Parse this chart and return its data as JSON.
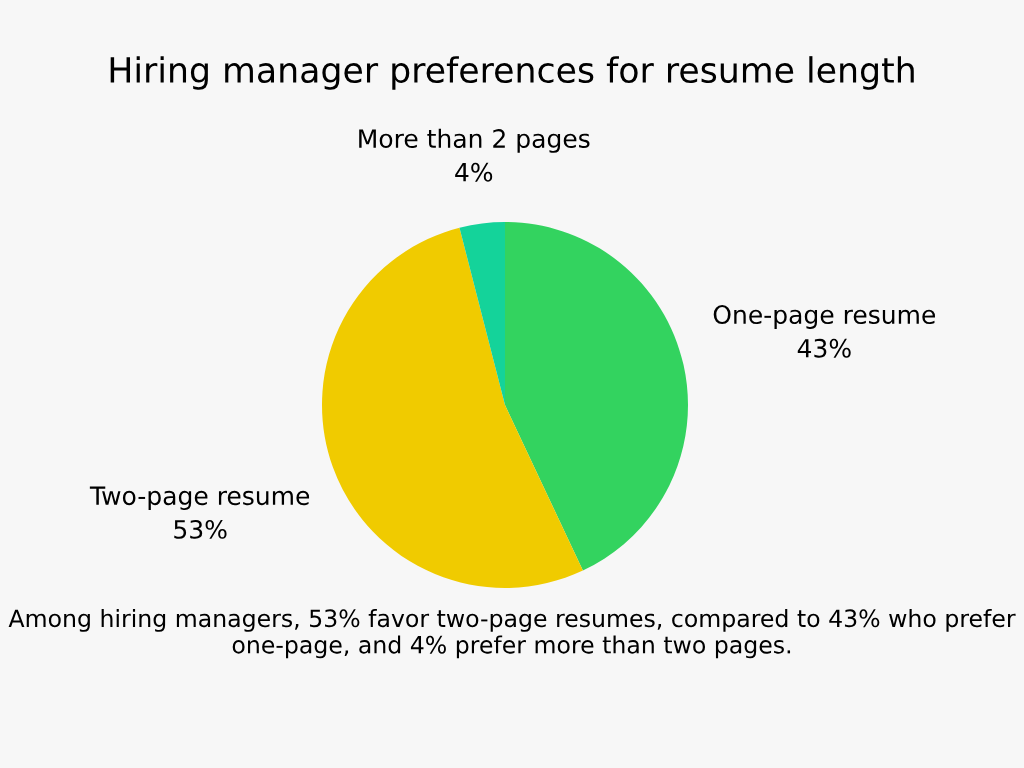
{
  "chart_data": {
    "type": "pie",
    "title": "Hiring manager preferences for resume length",
    "categories": [
      "One-page resume",
      "Two-page resume",
      "More than 2 pages"
    ],
    "values": [
      43,
      53,
      4
    ],
    "value_labels": [
      "43%",
      "53%",
      "4%"
    ],
    "colors": [
      "#33d35f",
      "#f0cb00",
      "#14d39a"
    ],
    "annotations": [
      "Among hiring managers, 53% favor two-page resumes, compared to 43% who prefer one-page, and 4% prefer more than two pages."
    ]
  }
}
